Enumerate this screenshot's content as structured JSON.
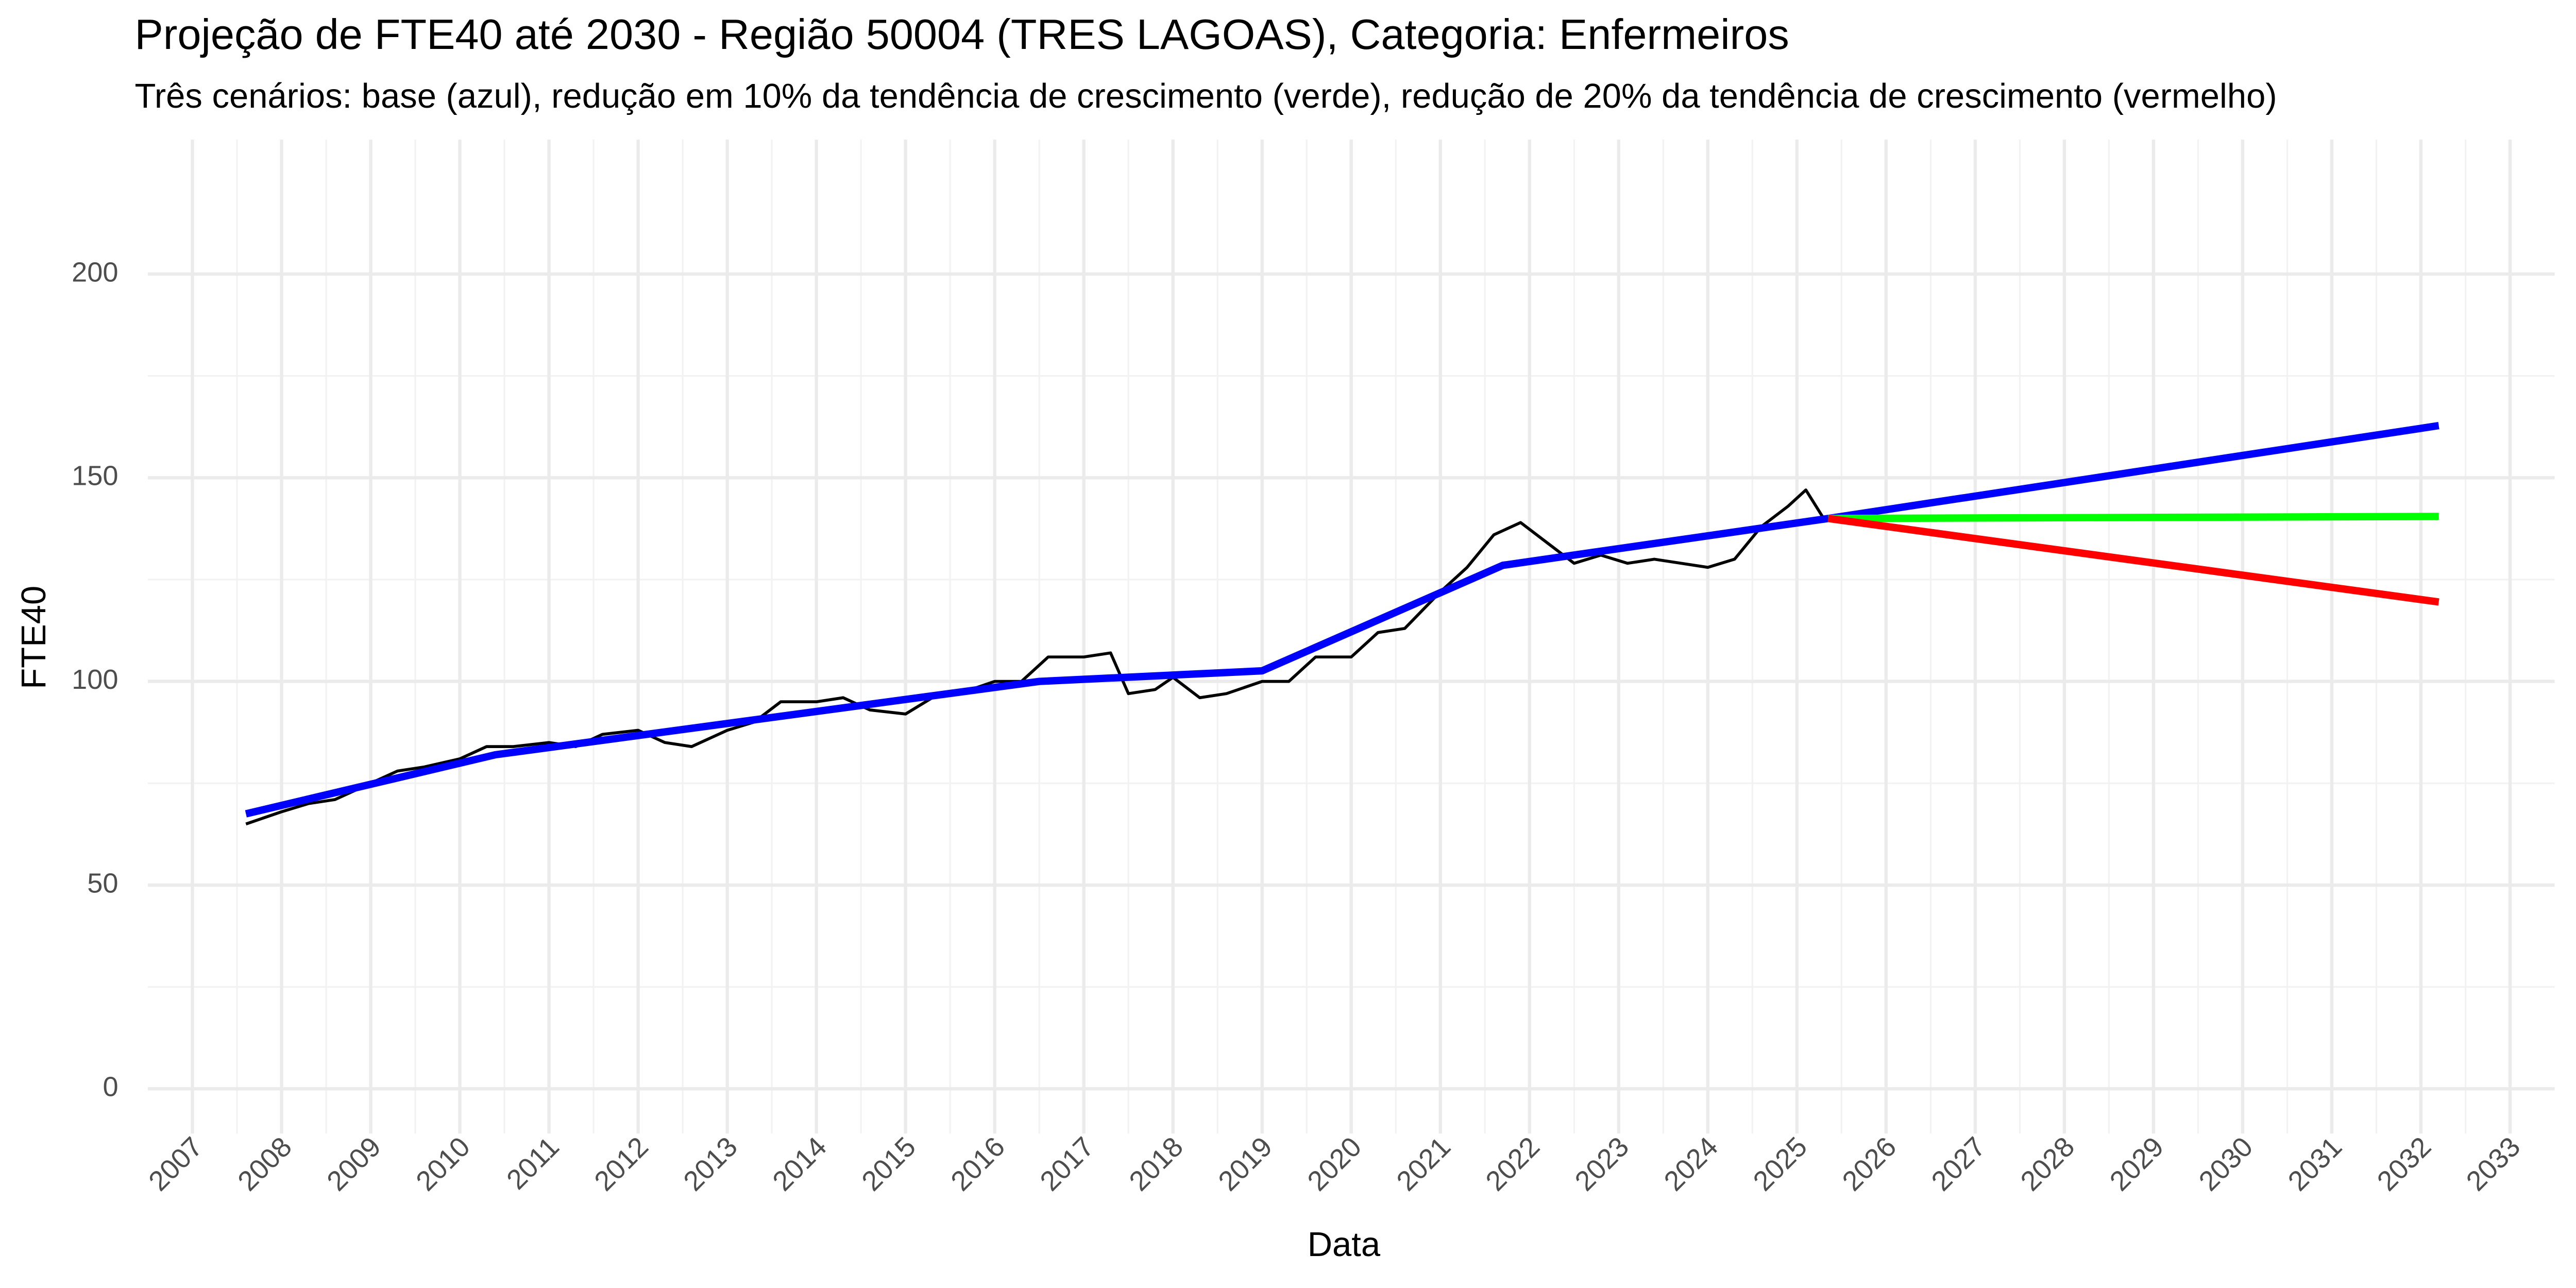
{
  "chart_data": {
    "type": "line",
    "title": "Projeção de FTE40 até 2030 - Região 50004 (TRES LAGOAS), Categoria: Enfermeiros",
    "subtitle": "Três cenários: base (azul), redução em 10% da tendência de crescimento (verde), redução de 20% da tendência de crescimento (vermelho)",
    "x_label": "Data",
    "y_label": "FTE40",
    "xlim": [
      2006.5,
      2033.5
    ],
    "ylim": [
      -11,
      233
    ],
    "xticks": [
      2007,
      2008,
      2009,
      2010,
      2011,
      2012,
      2013,
      2014,
      2015,
      2016,
      2017,
      2018,
      2019,
      2020,
      2021,
      2022,
      2023,
      2024,
      2025,
      2026,
      2027,
      2028,
      2029,
      2030,
      2031,
      2032,
      2033
    ],
    "yticks": [
      0,
      50,
      100,
      150,
      200
    ],
    "grid": true,
    "series": [
      {
        "color": "#000000",
        "width": 1.8,
        "x": [
          2007.6,
          2008.0,
          2008.3,
          2008.6,
          2009.0,
          2009.3,
          2009.6,
          2010.0,
          2010.3,
          2010.6,
          2011.0,
          2011.3,
          2011.6,
          2012.0,
          2012.3,
          2012.6,
          2013.0,
          2013.3,
          2013.6,
          2014.0,
          2014.3,
          2014.6,
          2015.0,
          2015.3,
          2015.6,
          2016.0,
          2016.3,
          2016.6,
          2017.0,
          2017.3,
          2017.5,
          2017.8,
          2018.0,
          2018.3,
          2018.6,
          2019.0,
          2019.3,
          2019.6,
          2020.0,
          2020.3,
          2020.6,
          2021.0,
          2021.3,
          2021.6,
          2021.9,
          2022.2,
          2022.5,
          2022.8,
          2023.1,
          2023.4,
          2023.7,
          2024.0,
          2024.3,
          2024.6,
          2024.9,
          2025.1,
          2025.3
        ],
        "values": [
          65,
          68,
          70,
          71,
          75,
          78,
          79,
          81,
          84,
          84,
          85,
          84,
          87,
          88,
          85,
          84,
          88,
          90,
          95,
          95,
          96,
          93,
          92,
          96,
          97,
          100,
          100,
          106,
          106,
          107,
          97,
          98,
          101,
          96,
          97,
          100,
          100,
          106,
          106,
          112,
          113,
          122,
          128,
          136,
          139,
          134,
          129,
          131,
          129,
          130,
          129,
          128,
          130,
          138,
          143,
          147,
          140
        ]
      },
      {
        "color": "#0000ff",
        "width": 4.5,
        "x": [
          2007.6,
          2010.4,
          2016.5,
          2019.0,
          2021.7,
          2025.35,
          2032.2
        ],
        "values": [
          67.5,
          82,
          100,
          102.6,
          128.5,
          140,
          162.8
        ]
      },
      {
        "color": "#00ff00",
        "width": 4.5,
        "x": [
          2025.35,
          2032.2
        ],
        "values": [
          140,
          140.5
        ]
      },
      {
        "color": "#ff0000",
        "width": 4.5,
        "x": [
          2025.35,
          2032.2
        ],
        "values": [
          140,
          119.5
        ]
      }
    ]
  }
}
